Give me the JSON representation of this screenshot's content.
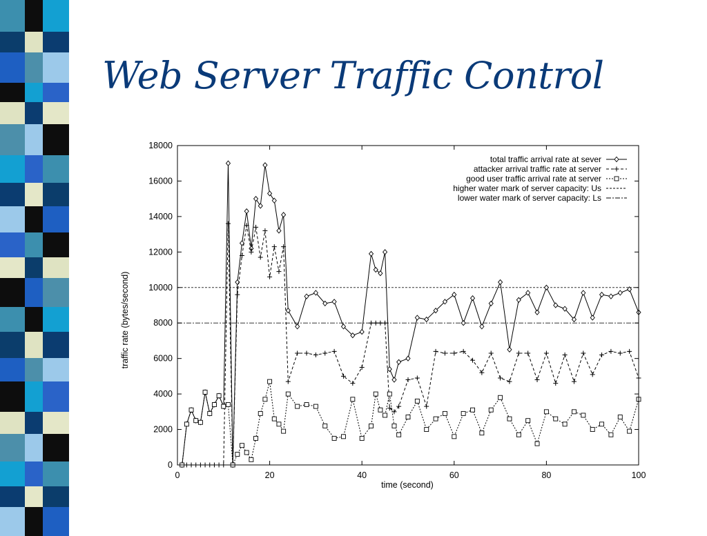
{
  "slide": {
    "title": "Web Server Traffic Control",
    "title_color": "#0a3a78",
    "stripe_palette": [
      "#3c8fae",
      "#0b3d6b",
      "#1e5fc2",
      "#0d0d0d",
      "#dfe3c2",
      "#4c8faa",
      "#13a0d2",
      "#0b3c70",
      "#9cc9ea",
      "#2a63c8",
      "#e4e7c8",
      "#0d0d0d"
    ]
  },
  "chart_data": {
    "type": "line",
    "xlabel": "time (second)",
    "ylabel": "traffic rate (bytes/second)",
    "xlim": [
      0,
      100
    ],
    "ylim": [
      0,
      18000
    ],
    "xticks": [
      "0",
      "20",
      "40",
      "60",
      "80",
      "100"
    ],
    "yticks": [
      "0",
      "2000",
      "4000",
      "6000",
      "8000",
      "10000",
      "12000",
      "14000",
      "16000",
      "18000"
    ],
    "grid": false,
    "legend_position": "top-right",
    "hlines": [
      {
        "y": 10000,
        "label": "higher water mark of server capacity: Us",
        "style": "dashed"
      },
      {
        "y": 8000,
        "label": "lower water mark of server capacity: Ls",
        "style": "dashdot"
      }
    ],
    "series": [
      {
        "name": "total traffic arrival rate at sever",
        "marker": "diamond",
        "style": "solid",
        "x": [
          1,
          2,
          3,
          4,
          5,
          6,
          7,
          8,
          9,
          10,
          11,
          12,
          13,
          14,
          15,
          16,
          17,
          18,
          19,
          20,
          21,
          22,
          23,
          24,
          26,
          28,
          30,
          32,
          34,
          36,
          38,
          40,
          42,
          43,
          44,
          45,
          46,
          47,
          48,
          50,
          52,
          54,
          56,
          58,
          60,
          62,
          64,
          66,
          68,
          70,
          72,
          74,
          76,
          78,
          80,
          82,
          84,
          86,
          88,
          90,
          92,
          94,
          96,
          98,
          100
        ],
        "y": [
          0,
          2300,
          3100,
          2500,
          2400,
          4100,
          2900,
          3400,
          3900,
          3300,
          17000,
          0,
          10300,
          12500,
          14300,
          12200,
          15000,
          14600,
          16900,
          15300,
          14900,
          13200,
          14100,
          8700,
          7800,
          9500,
          9700,
          9100,
          9200,
          7800,
          7300,
          7500,
          11900,
          11000,
          10800,
          12000,
          5400,
          4800,
          5800,
          6000,
          8300,
          8200,
          8700,
          9200,
          9600,
          8000,
          9400,
          7800,
          9100,
          10300,
          6500,
          9300,
          9700,
          8600,
          10000,
          9000,
          8800,
          8200,
          9700,
          8300,
          9600,
          9500,
          9700,
          9900,
          8600
        ]
      },
      {
        "name": "attacker arrival traffic rate at server",
        "marker": "plus",
        "style": "dashed",
        "x": [
          1,
          2,
          3,
          4,
          5,
          6,
          7,
          8,
          9,
          10,
          11,
          12,
          13,
          14,
          15,
          16,
          17,
          18,
          19,
          20,
          21,
          22,
          23,
          24,
          26,
          28,
          30,
          32,
          34,
          36,
          38,
          40,
          42,
          43,
          44,
          45,
          46,
          47,
          48,
          50,
          52,
          54,
          56,
          58,
          60,
          62,
          64,
          66,
          68,
          70,
          72,
          74,
          76,
          78,
          80,
          82,
          84,
          86,
          88,
          90,
          92,
          94,
          96,
          98,
          100
        ],
        "y": [
          0,
          0,
          0,
          0,
          0,
          0,
          0,
          0,
          0,
          0,
          13600,
          0,
          9600,
          11800,
          13500,
          12000,
          13400,
          11700,
          13200,
          10600,
          12300,
          10900,
          12300,
          4700,
          6300,
          6300,
          6200,
          6300,
          6400,
          5000,
          4600,
          5500,
          8000,
          8000,
          8000,
          8000,
          3200,
          3000,
          3300,
          4800,
          4900,
          3300,
          6400,
          6300,
          6300,
          6400,
          5900,
          5200,
          6300,
          4900,
          4700,
          6300,
          6300,
          4800,
          6300,
          4600,
          6200,
          4700,
          6300,
          5100,
          6200,
          6400,
          6300,
          6400,
          4900
        ]
      },
      {
        "name": "good user traffic arrival rate at server",
        "marker": "square",
        "style": "dotted",
        "x": [
          1,
          2,
          3,
          4,
          5,
          6,
          7,
          8,
          9,
          10,
          11,
          12,
          13,
          14,
          15,
          16,
          17,
          18,
          19,
          20,
          21,
          22,
          23,
          24,
          26,
          28,
          30,
          32,
          34,
          36,
          38,
          40,
          42,
          43,
          44,
          45,
          46,
          47,
          48,
          50,
          52,
          54,
          56,
          58,
          60,
          62,
          64,
          66,
          68,
          70,
          72,
          74,
          76,
          78,
          80,
          82,
          84,
          86,
          88,
          90,
          92,
          94,
          96,
          98,
          100
        ],
        "y": [
          0,
          2300,
          3100,
          2500,
          2400,
          4100,
          2900,
          3400,
          3900,
          3300,
          3400,
          0,
          600,
          1100,
          700,
          300,
          1500,
          2900,
          3700,
          4700,
          2600,
          2300,
          1900,
          4000,
          3300,
          3400,
          3300,
          2200,
          1500,
          1600,
          3700,
          1500,
          2200,
          4000,
          3100,
          2800,
          4000,
          2200,
          1700,
          2700,
          3600,
          2000,
          2600,
          2900,
          1600,
          2900,
          3100,
          1800,
          3100,
          3800,
          2600,
          1700,
          2500,
          1200,
          3000,
          2600,
          2300,
          3000,
          2800,
          2000,
          2300,
          1700,
          2700,
          1900,
          3700
        ]
      }
    ]
  }
}
